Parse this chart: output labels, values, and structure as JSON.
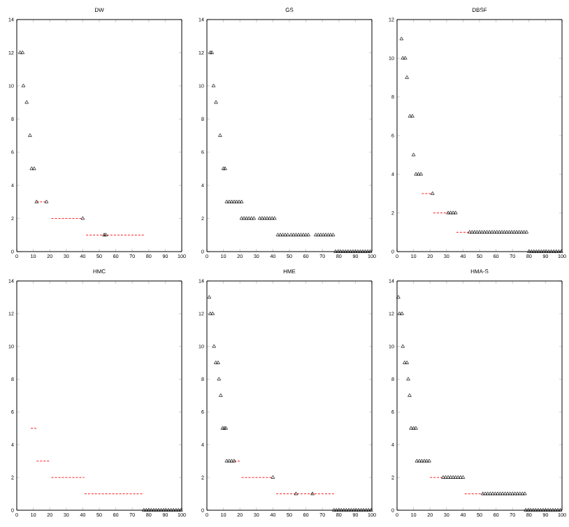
{
  "chart_data": [
    {
      "type": "scatter",
      "title": "DW",
      "xlim": [
        0,
        100
      ],
      "xticks": [
        0,
        10,
        20,
        30,
        40,
        50,
        60,
        70,
        80,
        90,
        100
      ],
      "ylim": [
        0,
        14
      ],
      "yticks": [
        0,
        2,
        4,
        6,
        8,
        10,
        12,
        14
      ],
      "marker": "triangle",
      "series": [
        {
          "type": "scatter",
          "color": "#000000",
          "x": [
            2,
            3.5,
            4,
            6,
            8,
            9,
            10.5,
            12,
            18,
            40,
            53,
            54
          ],
          "values": [
            12,
            12,
            10,
            9,
            7,
            5,
            5,
            3,
            3,
            2,
            1,
            1
          ]
        },
        {
          "type": "line",
          "color": "#ff0000",
          "line_style": "dashed",
          "marker": "none",
          "x": [
            12,
            18,
            null,
            21,
            40,
            null,
            42,
            77
          ],
          "values": [
            3,
            3,
            null,
            2,
            2,
            null,
            1,
            1
          ]
        }
      ]
    },
    {
      "type": "scatter",
      "title": "GS",
      "xlim": [
        0,
        100
      ],
      "xticks": [
        0,
        10,
        20,
        30,
        40,
        50,
        60,
        70,
        80,
        90,
        100
      ],
      "ylim": [
        0,
        14
      ],
      "yticks": [
        0,
        2,
        4,
        6,
        8,
        10,
        12,
        14
      ],
      "marker": "triangle",
      "series": [
        {
          "type": "scatter",
          "color": "#000000",
          "x": [
            2,
            3,
            4,
            5.5,
            8,
            10,
            11,
            12,
            13.5,
            15,
            16.5,
            18,
            19.5,
            21,
            21,
            22.5,
            24,
            25.5,
            27,
            28.5,
            32,
            33.5,
            35,
            36.5,
            38,
            39.5,
            41,
            43,
            44.5,
            46,
            47.5,
            49,
            51,
            52.5,
            54,
            55.5,
            57,
            58.5,
            60,
            61.5,
            66,
            67.5,
            69,
            70.5,
            72,
            73.5,
            75,
            76.5,
            78,
            79.5,
            81,
            82.5,
            84,
            85.5,
            87,
            88.5,
            90,
            91.5,
            93,
            94.5,
            96,
            97.5,
            99
          ],
          "values": [
            12,
            12,
            10,
            9,
            7,
            5,
            5,
            3,
            3,
            3,
            3,
            3,
            3,
            3,
            2,
            2,
            2,
            2,
            2,
            2,
            2,
            2,
            2,
            2,
            2,
            2,
            2,
            1,
            1,
            1,
            1,
            1,
            1,
            1,
            1,
            1,
            1,
            1,
            1,
            1,
            1,
            1,
            1,
            1,
            1,
            1,
            1,
            1,
            0,
            0,
            0,
            0,
            0,
            0,
            0,
            0,
            0,
            0,
            0,
            0,
            0,
            0,
            0
          ]
        }
      ]
    },
    {
      "type": "scatter",
      "title": "DBSF",
      "xlim": [
        0,
        100
      ],
      "xticks": [
        0,
        10,
        20,
        30,
        40,
        50,
        60,
        70,
        80,
        90,
        100
      ],
      "ylim": [
        0,
        12
      ],
      "yticks": [
        0,
        2,
        4,
        6,
        8,
        10,
        12
      ],
      "marker": "triangle",
      "series": [
        {
          "type": "scatter",
          "color": "#000000",
          "x": [
            2.7,
            3.5,
            5,
            6,
            7.8,
            9.3,
            10,
            11.5,
            13,
            14.5,
            21.5,
            31,
            32.5,
            34,
            35.5,
            44,
            45.5,
            47,
            48.5,
            50,
            51.5,
            53,
            54.5,
            56,
            57.5,
            59,
            60.5,
            62,
            63.5,
            65,
            66.5,
            68,
            69.5,
            71,
            72.5,
            74,
            75.5,
            77,
            78.5,
            80,
            81.5,
            83,
            84.5,
            86,
            87.5,
            89,
            90.5,
            92,
            93.5,
            95,
            96.5,
            98,
            99.5
          ],
          "values": [
            11,
            10,
            10,
            9,
            7,
            7,
            5,
            4,
            4,
            4,
            3,
            2,
            2,
            2,
            2,
            1,
            1,
            1,
            1,
            1,
            1,
            1,
            1,
            1,
            1,
            1,
            1,
            1,
            1,
            1,
            1,
            1,
            1,
            1,
            1,
            1,
            1,
            1,
            1,
            0,
            0,
            0,
            0,
            0,
            0,
            0,
            0,
            0,
            0,
            0,
            0,
            0,
            0
          ]
        },
        {
          "type": "line",
          "color": "#ff0000",
          "line_style": "dashed",
          "marker": "none",
          "x": [
            15,
            21.5,
            null,
            22,
            31,
            null,
            36,
            44
          ],
          "values": [
            3,
            3,
            null,
            2,
            2,
            null,
            1,
            1
          ]
        }
      ]
    },
    {
      "type": "scatter",
      "title": "HMC",
      "xlim": [
        0,
        100
      ],
      "xticks": [
        0,
        10,
        20,
        30,
        40,
        50,
        60,
        70,
        80,
        90,
        100
      ],
      "ylim": [
        0,
        14
      ],
      "yticks": [
        0,
        2,
        4,
        6,
        8,
        10,
        12,
        14
      ],
      "marker": "triangle",
      "series": [
        {
          "type": "scatter",
          "color": "#000000",
          "x": [
            77,
            78.5,
            80,
            81.5,
            83,
            84.5,
            86,
            87.5,
            89,
            90.5,
            92,
            93.5,
            95,
            96.5,
            98,
            99.5
          ],
          "values": [
            0,
            0,
            0,
            0,
            0,
            0,
            0,
            0,
            0,
            0,
            0,
            0,
            0,
            0,
            0,
            0
          ]
        },
        {
          "type": "line",
          "color": "#ff0000",
          "line_style": "dashed",
          "marker": "none",
          "x": [
            8.5,
            12,
            null,
            12,
            20,
            null,
            21,
            41,
            null,
            41,
            77
          ],
          "values": [
            5,
            5,
            null,
            3,
            3,
            null,
            2,
            2,
            null,
            1,
            1
          ]
        }
      ]
    },
    {
      "type": "scatter",
      "title": "HME",
      "xlim": [
        0,
        100
      ],
      "xticks": [
        0,
        10,
        20,
        30,
        40,
        50,
        60,
        70,
        80,
        90,
        100
      ],
      "ylim": [
        0,
        14
      ],
      "yticks": [
        0,
        2,
        4,
        6,
        8,
        10,
        12,
        14
      ],
      "marker": "triangle",
      "series": [
        {
          "type": "scatter",
          "color": "#000000",
          "x": [
            1.4,
            2,
            3.5,
            4.3,
            5.4,
            6.8,
            7.3,
            8.4,
            9.5,
            10.5,
            11.5,
            12,
            13.5,
            15,
            16.5,
            40,
            54,
            64,
            77,
            78.5,
            80,
            81.5,
            83,
            84.5,
            86,
            87.5,
            89,
            90.5,
            92,
            93.5,
            95,
            96.5,
            98,
            99.5
          ],
          "values": [
            13,
            12,
            12,
            10,
            9,
            9,
            8,
            7,
            5,
            5,
            5,
            3,
            3,
            3,
            3,
            2,
            1,
            1,
            0,
            0,
            0,
            0,
            0,
            0,
            0,
            0,
            0,
            0,
            0,
            0,
            0,
            0,
            0,
            0
          ]
        },
        {
          "type": "line",
          "color": "#ff0000",
          "line_style": "dashed",
          "marker": "none",
          "x": [
            16.5,
            20,
            null,
            21,
            40,
            null,
            42,
            77
          ],
          "values": [
            3,
            3,
            null,
            2,
            2,
            null,
            1,
            1
          ]
        }
      ]
    },
    {
      "type": "scatter",
      "title": "HMA-S",
      "xlim": [
        0,
        100
      ],
      "xticks": [
        0,
        10,
        20,
        30,
        40,
        50,
        60,
        70,
        80,
        90,
        100
      ],
      "ylim": [
        0,
        14
      ],
      "yticks": [
        0,
        2,
        4,
        6,
        8,
        10,
        12,
        14
      ],
      "marker": "triangle",
      "series": [
        {
          "type": "scatter",
          "color": "#000000",
          "x": [
            0.8,
            1.5,
            3,
            3.5,
            4.6,
            6,
            6.8,
            7.6,
            8.5,
            10,
            11.4,
            12,
            13.5,
            15,
            16.5,
            18,
            19.5,
            28,
            29.5,
            31,
            32.5,
            34,
            35.5,
            37,
            38.5,
            40,
            52,
            53.5,
            55,
            56.5,
            58,
            59.5,
            61,
            62.5,
            64,
            65.5,
            67,
            68.5,
            70,
            71.5,
            73,
            74.5,
            76,
            77.5,
            78,
            79.5,
            81,
            82.5,
            84,
            85.5,
            87,
            88.5,
            90,
            91.5,
            93,
            94.5,
            96,
            97.5,
            99
          ],
          "values": [
            13,
            12,
            12,
            10,
            9,
            9,
            8,
            7,
            5,
            5,
            5,
            3,
            3,
            3,
            3,
            3,
            3,
            2,
            2,
            2,
            2,
            2,
            2,
            2,
            2,
            2,
            1,
            1,
            1,
            1,
            1,
            1,
            1,
            1,
            1,
            1,
            1,
            1,
            1,
            1,
            1,
            1,
            1,
            1,
            0,
            0,
            0,
            0,
            0,
            0,
            0,
            0,
            0,
            0,
            0,
            0,
            0,
            0,
            0
          ]
        },
        {
          "type": "line",
          "color": "#ff0000",
          "line_style": "dashed",
          "marker": "none",
          "x": [
            20,
            28,
            null,
            41,
            52
          ],
          "values": [
            2,
            2,
            null,
            1,
            1
          ]
        }
      ]
    }
  ]
}
